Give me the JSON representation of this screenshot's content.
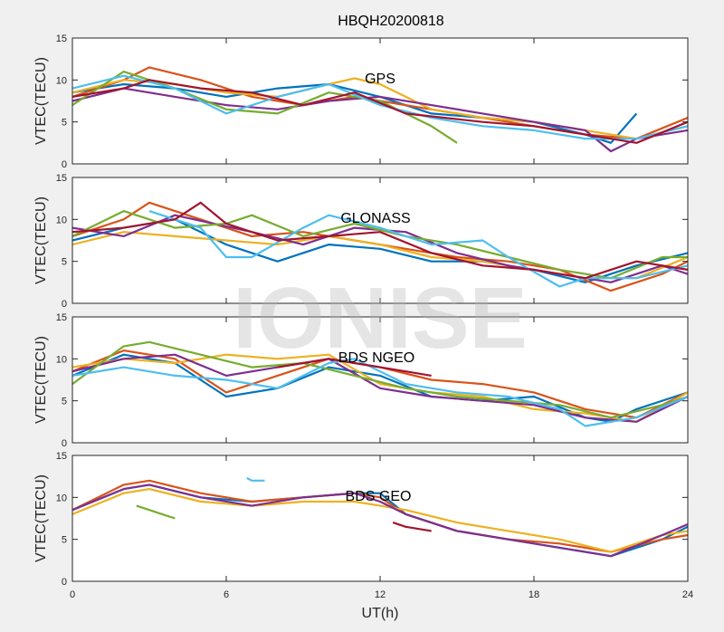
{
  "title": "HBQH20200818",
  "watermark": "IONISE",
  "colors": [
    "#0072BD",
    "#D95319",
    "#EDB120",
    "#7E2F8E",
    "#77AC30",
    "#4DBEEE",
    "#A2142F"
  ],
  "chart_data": {
    "type": "line",
    "xlabel": "UT(h)",
    "xlim": [
      0,
      24
    ],
    "xticks": [
      0,
      6,
      12,
      18,
      24
    ],
    "panels": [
      {
        "label": "GPS",
        "ylabel": "VTEC(TECU)",
        "ylim": [
          0,
          15
        ],
        "yticks": [
          0,
          5,
          10,
          15
        ],
        "series": [
          {
            "x": [
              0,
              2,
              4,
              6,
              8,
              10,
              12,
              14,
              16,
              18,
              20,
              21,
              22
            ],
            "y": [
              8.5,
              9.5,
              9.0,
              8.0,
              9.0,
              9.5,
              8.0,
              6.0,
              5.5,
              5.0,
              3.5,
              2.5,
              6.0
            ]
          },
          {
            "x": [
              0,
              2,
              3,
              5,
              7,
              9,
              11,
              12,
              14,
              16,
              18,
              20,
              22,
              24
            ],
            "y": [
              8.0,
              10.0,
              11.5,
              10.0,
              8.0,
              7.0,
              8.0,
              7.5,
              6.5,
              5.5,
              4.5,
              3.5,
              3.0,
              5.5
            ]
          },
          {
            "x": [
              0,
              2,
              4,
              6,
              8,
              10,
              11,
              12,
              14,
              16,
              18,
              20,
              22,
              24
            ],
            "y": [
              8.5,
              10.0,
              9.5,
              8.5,
              8.0,
              9.5,
              10.2,
              9.5,
              6.5,
              5.5,
              5.0,
              4.0,
              3.0,
              4.5
            ]
          },
          {
            "x": [
              0,
              2,
              4,
              6,
              8,
              10,
              12,
              14,
              16,
              18,
              20,
              21,
              22,
              24
            ],
            "y": [
              7.5,
              9.0,
              8.0,
              7.0,
              6.5,
              7.5,
              8.0,
              7.0,
              6.0,
              5.0,
              4.0,
              1.5,
              3.0,
              4.0
            ]
          },
          {
            "x": [
              0,
              2,
              4,
              6,
              8,
              10,
              12,
              14,
              15
            ],
            "y": [
              7.0,
              11.0,
              9.0,
              6.5,
              6.0,
              8.5,
              7.5,
              4.5,
              2.5
            ]
          },
          {
            "x": [
              0,
              2,
              4,
              6,
              8,
              10,
              12,
              14,
              16,
              18,
              20,
              22,
              24
            ],
            "y": [
              9.0,
              10.5,
              9.0,
              6.0,
              8.0,
              9.5,
              7.0,
              5.5,
              4.5,
              4.0,
              3.0,
              3.0,
              4.5
            ]
          },
          {
            "x": [
              0,
              2,
              3,
              5,
              7,
              9,
              11,
              13,
              16,
              18,
              20,
              22,
              24
            ],
            "y": [
              8.0,
              9.0,
              10.0,
              9.0,
              8.5,
              7.0,
              8.5,
              6.0,
              5.0,
              4.5,
              3.5,
              2.5,
              5.0
            ]
          }
        ]
      },
      {
        "label": "GLONASS",
        "ylabel": "VTEC(TECU)",
        "ylim": [
          0,
          15
        ],
        "yticks": [
          0,
          5,
          10,
          15
        ],
        "series": [
          {
            "x": [
              0,
              2,
              4,
              6,
              8,
              10,
              12,
              14,
              16,
              18,
              20,
              22,
              24
            ],
            "y": [
              7.5,
              9.0,
              10.0,
              7.0,
              5.0,
              7.0,
              6.5,
              5.0,
              5.0,
              4.0,
              2.5,
              4.5,
              6.0
            ]
          },
          {
            "x": [
              0,
              2,
              3,
              5,
              7,
              9,
              11,
              13,
              15,
              17,
              19,
              21,
              23,
              24
            ],
            "y": [
              8.0,
              10.0,
              12.0,
              10.0,
              8.0,
              8.5,
              7.5,
              6.5,
              5.5,
              5.0,
              4.0,
              1.5,
              3.5,
              5.0
            ]
          },
          {
            "x": [
              0,
              2,
              4,
              6,
              8,
              10,
              12,
              14,
              16,
              18,
              20,
              22,
              24
            ],
            "y": [
              7.0,
              8.5,
              8.0,
              7.5,
              7.0,
              8.0,
              7.0,
              5.5,
              5.0,
              4.0,
              3.0,
              3.0,
              5.5
            ]
          },
          {
            "x": [
              0,
              2,
              4,
              7,
              9,
              11,
              13,
              15,
              17,
              19,
              21,
              23,
              24
            ],
            "y": [
              9.0,
              8.0,
              10.5,
              8.5,
              7.0,
              9.0,
              8.5,
              6.0,
              4.5,
              3.5,
              2.5,
              4.5,
              3.5
            ]
          },
          {
            "x": [
              0,
              2,
              4,
              6,
              7,
              9,
              11,
              13,
              15,
              17,
              19,
              21,
              23,
              24
            ],
            "y": [
              8.0,
              11.0,
              9.0,
              9.5,
              10.5,
              8.0,
              9.5,
              8.0,
              7.0,
              5.5,
              4.0,
              3.0,
              5.5,
              5.5
            ]
          },
          {
            "x": [
              3,
              5,
              6,
              7,
              9,
              10,
              12,
              14,
              16,
              17,
              19,
              20,
              22,
              24
            ],
            "y": [
              11.0,
              9.0,
              5.5,
              5.5,
              9.0,
              10.5,
              9.0,
              7.0,
              7.5,
              5.5,
              2.0,
              3.0,
              3.0,
              4.5
            ]
          },
          {
            "x": [
              0,
              2,
              4,
              5,
              6,
              8,
              10,
              12,
              14,
              16,
              18,
              20,
              22,
              24
            ],
            "y": [
              8.5,
              9.0,
              10.0,
              12.0,
              9.5,
              7.5,
              8.0,
              8.5,
              6.0,
              4.5,
              4.0,
              3.0,
              5.0,
              4.0
            ]
          }
        ]
      },
      {
        "label": "BDS NGEO",
        "ylabel": "VTEC(TECU)",
        "ylim": [
          0,
          15
        ],
        "yticks": [
          0,
          5,
          10,
          15
        ],
        "series": [
          {
            "x": [
              0,
              2,
              4,
              6,
              8,
              10,
              12,
              14,
              16,
              18,
              20,
              21,
              22,
              24
            ],
            "y": [
              8.0,
              10.5,
              9.5,
              5.5,
              6.5,
              9.0,
              8.0,
              5.5,
              5.0,
              5.5,
              3.0,
              2.5,
              4.0,
              6.0
            ]
          },
          {
            "x": [
              0,
              2,
              4,
              6,
              8,
              10,
              12,
              14,
              16,
              18,
              20,
              22,
              24
            ],
            "y": [
              8.5,
              11.0,
              10.0,
              6.0,
              8.0,
              10.0,
              9.0,
              7.5,
              7.0,
              6.0,
              4.0,
              3.0,
              6.0
            ]
          },
          {
            "x": [
              0,
              2,
              4,
              6,
              8,
              10,
              12,
              14,
              16,
              18,
              20,
              22,
              24
            ],
            "y": [
              9.0,
              10.0,
              9.5,
              10.5,
              10.0,
              10.5,
              7.0,
              6.0,
              5.5,
              4.0,
              3.5,
              2.5,
              6.0
            ]
          },
          {
            "x": [
              0,
              2,
              4,
              6,
              8,
              10,
              12,
              14,
              16,
              18,
              20,
              22,
              24
            ],
            "y": [
              8.5,
              10.0,
              10.5,
              8.0,
              9.0,
              10.0,
              6.5,
              5.5,
              5.0,
              4.5,
              3.0,
              2.5,
              5.5
            ]
          },
          {
            "x": [
              0,
              2,
              3,
              5,
              7,
              9,
              11,
              13,
              15,
              17,
              19,
              21,
              23,
              24
            ],
            "y": [
              7.0,
              11.5,
              12.0,
              10.5,
              9.0,
              9.5,
              8.0,
              6.5,
              5.5,
              5.0,
              4.5,
              3.0,
              4.5,
              5.5
            ]
          },
          {
            "x": [
              0,
              2,
              4,
              6,
              8,
              10,
              11,
              13,
              15,
              17,
              19,
              20,
              22,
              24
            ],
            "y": [
              8.0,
              9.0,
              8.0,
              7.5,
              6.5,
              9.5,
              10.0,
              7.0,
              6.0,
              5.5,
              4.0,
              2.0,
              3.0,
              5.5
            ]
          },
          {
            "x": [
              8,
              9,
              10,
              11,
              12,
              13,
              14
            ],
            "y": [
              9.0,
              9.5,
              10.0,
              9.5,
              9.0,
              8.5,
              8.0
            ]
          }
        ]
      },
      {
        "label": "BDS GEO",
        "ylabel": "VTEC(TECU)",
        "ylim": [
          0,
          15
        ],
        "yticks": [
          0,
          5,
          10,
          15
        ],
        "series": [
          {
            "x": [
              0,
              2,
              3,
              5,
              7,
              9,
              11,
              12,
              13,
              15,
              17,
              19,
              21,
              23,
              24
            ],
            "y": [
              8.5,
              11.0,
              11.5,
              10.0,
              9.5,
              10.0,
              10.5,
              10.5,
              8.0,
              6.0,
              5.0,
              4.0,
              3.0,
              5.0,
              6.5
            ]
          },
          {
            "x": [
              0,
              2,
              3,
              5,
              7,
              9,
              11,
              12,
              13,
              15,
              17,
              19,
              21,
              23,
              24
            ],
            "y": [
              8.5,
              11.5,
              12.0,
              10.5,
              9.5,
              10.0,
              10.5,
              10.0,
              8.0,
              6.0,
              5.0,
              4.5,
              3.5,
              5.0,
              5.5
            ]
          },
          {
            "x": [
              0,
              2,
              3,
              5,
              7,
              9,
              11,
              12,
              13,
              15,
              17,
              19,
              21,
              23,
              24
            ],
            "y": [
              8.0,
              10.5,
              11.0,
              9.5,
              9.0,
              9.5,
              9.5,
              9.0,
              8.5,
              7.0,
              6.0,
              5.0,
              3.5,
              5.5,
              6.0
            ]
          },
          {
            "x": [
              0,
              2,
              3,
              5,
              7,
              9,
              11,
              12,
              13,
              15,
              17,
              19,
              21,
              23,
              24
            ],
            "y": [
              8.5,
              11.0,
              11.5,
              10.0,
              9.0,
              10.0,
              10.5,
              9.5,
              8.0,
              6.0,
              5.0,
              4.0,
              3.0,
              5.5,
              6.8
            ]
          },
          {
            "x": [
              2.5,
              3,
              3.5,
              4
            ],
            "y": [
              9.0,
              8.5,
              8.0,
              7.5
            ]
          },
          {
            "x": [
              6.8,
              7,
              7.5
            ],
            "y": [
              12.3,
              12.0,
              12.0
            ]
          },
          {
            "x": [
              12.5,
              13,
              14
            ],
            "y": [
              7.0,
              6.5,
              6.0
            ]
          }
        ]
      }
    ]
  }
}
